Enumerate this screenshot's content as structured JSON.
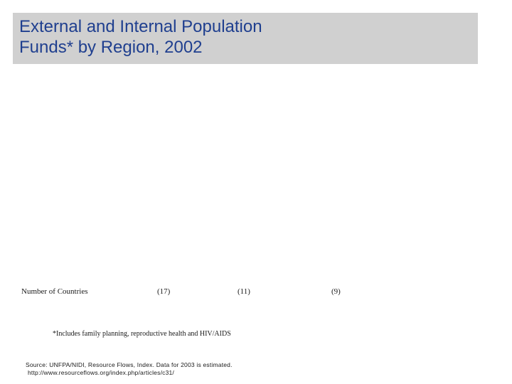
{
  "slide": {
    "title_line1": "External and Internal Population",
    "title_line2": "Funds* by Region, 2002",
    "colors": {
      "title_band": "#d0d0d0",
      "title_text": "#1f3f8f"
    }
  },
  "countries_row": {
    "label": "Number of Countries",
    "values": [
      "(17)",
      "(11)",
      "(9)"
    ]
  },
  "footnote": "*Includes family planning, reproductive health and HIV/AIDS",
  "source": {
    "line1": "Source: UNFPA/NIDI, Resource Flows, Index. Data for 2003 is estimated.",
    "line2": "http://www.resourceflows.org/index.php/articles/c31/"
  }
}
